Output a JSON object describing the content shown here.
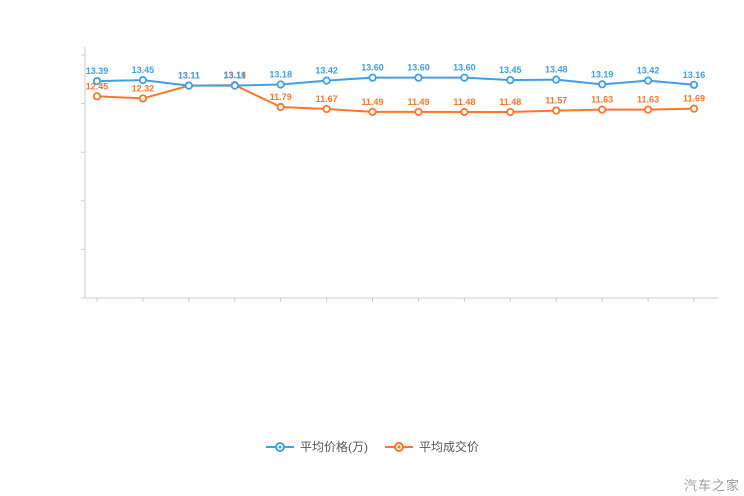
{
  "watermark": "汽车之家",
  "chart_data": {
    "type": "line",
    "title": "",
    "xlabel": "",
    "ylabel": "",
    "x_labels": [],
    "point_count": 14,
    "x_tick_labels_visible": false,
    "y_tick_labels_visible": false,
    "grid": false,
    "data_labels": true,
    "legend_position": "bottom",
    "ylim": [
      0,
      15
    ],
    "y_ticks": [
      0,
      3,
      6,
      9,
      12,
      15
    ],
    "axis_color": "#cccccc",
    "series": [
      {
        "name": "平均价格(万)",
        "color": "#3ca1e6",
        "values": [
          13.39,
          13.45,
          13.11,
          13.11,
          13.18,
          13.42,
          13.6,
          13.6,
          13.6,
          13.45,
          13.48,
          13.19,
          13.42,
          13.16
        ]
      },
      {
        "name": "平均成交价",
        "color": "#ff7429",
        "values": [
          12.45,
          12.32,
          13.11,
          13.14,
          11.79,
          11.67,
          11.49,
          11.49,
          11.48,
          11.48,
          11.57,
          11.63,
          11.63,
          11.69
        ]
      }
    ]
  }
}
